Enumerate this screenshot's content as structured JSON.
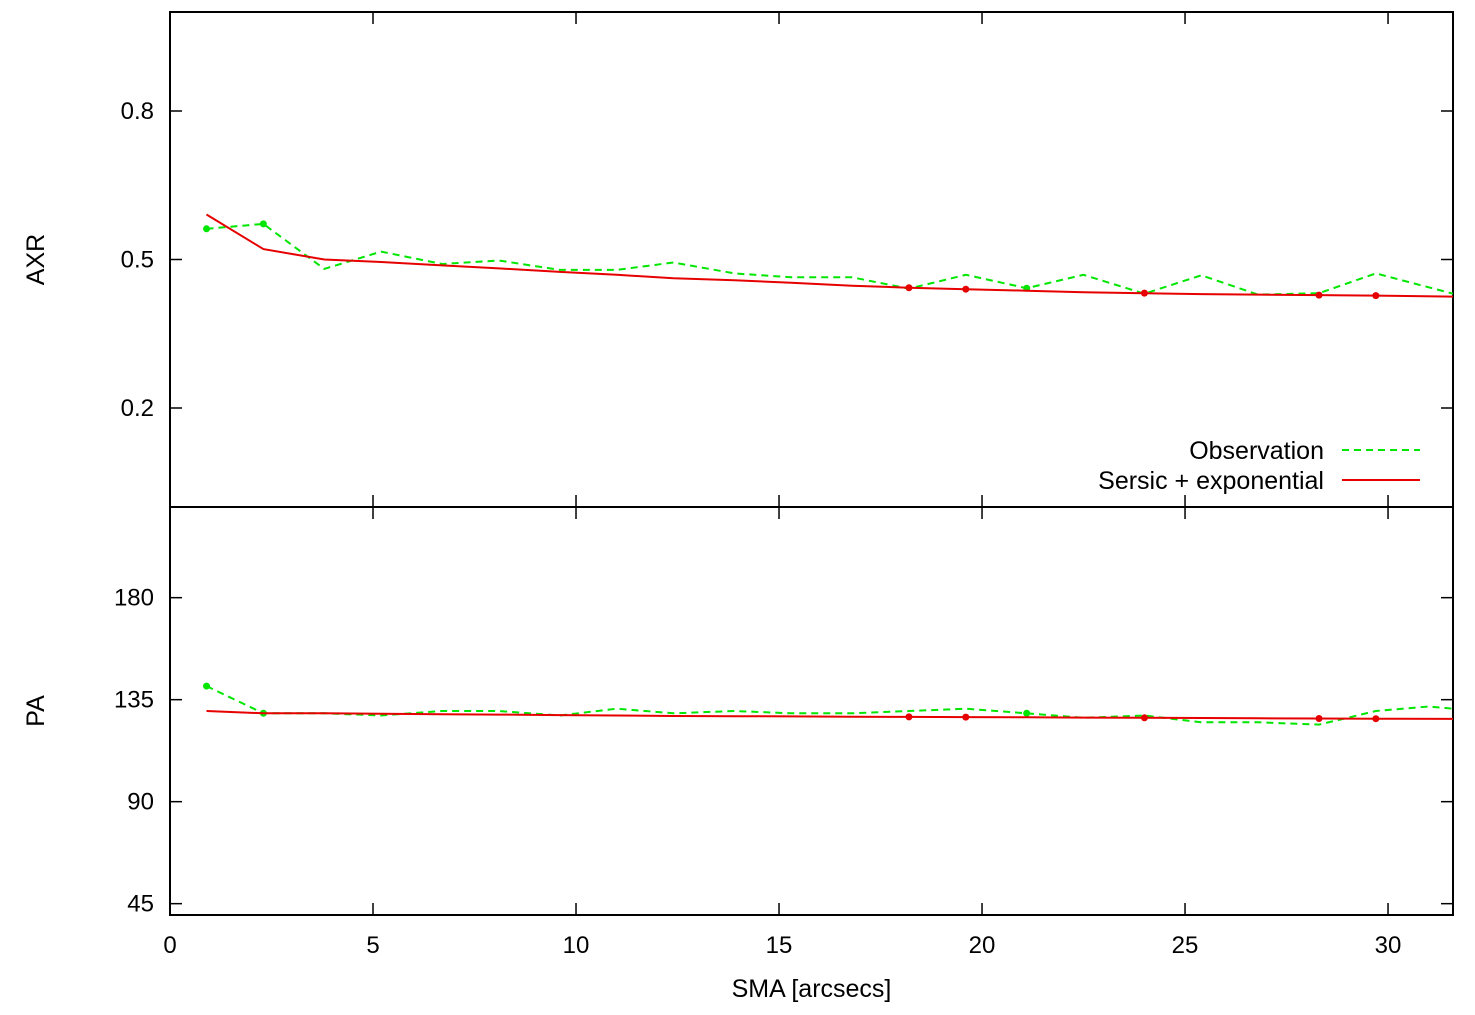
{
  "chart_data": [
    {
      "type": "line",
      "ylabel": "AXR",
      "xlabel": "",
      "xlim": [
        0,
        31.6
      ],
      "ylim": [
        0.0,
        1.0
      ],
      "xticks": [
        0,
        5,
        10,
        15,
        20,
        25,
        30
      ],
      "yticks": [
        0.2,
        0.5,
        0.8
      ],
      "ytick_labels": [
        "0.2",
        "0.5",
        "0.8"
      ],
      "legend_position": "bottom-right",
      "series": [
        {
          "name": "Observation",
          "color": "#00e600",
          "style": "dashed",
          "x": [
            0.9,
            2.3,
            3.8,
            5.2,
            6.7,
            8.1,
            9.6,
            11.0,
            12.4,
            13.9,
            15.3,
            16.8,
            18.2,
            19.6,
            21.1,
            22.5,
            24.0,
            25.4,
            26.8,
            28.3,
            29.7,
            31.6
          ],
          "y": [
            0.562,
            0.572,
            0.481,
            0.516,
            0.491,
            0.498,
            0.479,
            0.479,
            0.494,
            0.472,
            0.464,
            0.464,
            0.441,
            0.469,
            0.442,
            0.469,
            0.431,
            0.468,
            0.429,
            0.432,
            0.472,
            0.431
          ],
          "markers_x": [
            0.9,
            2.3,
            21.1
          ],
          "markers_y": [
            0.562,
            0.572,
            0.442
          ]
        },
        {
          "name": "Sersic + exponential",
          "color": "#e60000",
          "style": "solid",
          "x": [
            0.9,
            2.3,
            3.8,
            5.2,
            6.7,
            8.1,
            9.6,
            11.0,
            12.4,
            13.9,
            15.3,
            16.8,
            18.2,
            19.6,
            21.1,
            22.5,
            24.0,
            25.4,
            26.8,
            28.3,
            29.7,
            31.6
          ],
          "y": [
            0.591,
            0.521,
            0.5,
            0.495,
            0.488,
            0.482,
            0.475,
            0.469,
            0.462,
            0.458,
            0.453,
            0.447,
            0.443,
            0.44,
            0.437,
            0.434,
            0.432,
            0.43,
            0.429,
            0.428,
            0.427,
            0.425
          ],
          "markers_x": [
            18.2,
            19.6,
            24.0,
            28.3,
            29.7
          ],
          "markers_y": [
            0.443,
            0.44,
            0.432,
            0.428,
            0.427
          ]
        }
      ]
    },
    {
      "type": "line",
      "ylabel": "PA",
      "xlabel": "SMA [arcsecs]",
      "xlim": [
        0,
        31.6
      ],
      "ylim": [
        40,
        220
      ],
      "xticks": [
        0,
        5,
        10,
        15,
        20,
        25,
        30
      ],
      "xtick_labels": [
        "0",
        "5",
        "10",
        "15",
        "20",
        "25",
        "30"
      ],
      "yticks": [
        45,
        90,
        135,
        180
      ],
      "ytick_labels": [
        "45",
        "90",
        "135",
        "180"
      ],
      "series": [
        {
          "name": "Observation",
          "color": "#00e600",
          "style": "dashed",
          "x": [
            0.9,
            2.3,
            3.8,
            5.2,
            6.7,
            8.1,
            9.6,
            11.0,
            12.4,
            13.9,
            15.3,
            16.8,
            18.2,
            19.6,
            21.1,
            22.5,
            24.0,
            25.4,
            26.8,
            28.3,
            29.7,
            31.0,
            31.6
          ],
          "y": [
            141,
            129,
            129,
            128,
            130,
            130,
            128,
            131,
            129,
            130,
            129,
            129,
            130,
            131,
            129,
            127,
            128,
            125,
            125,
            124,
            130,
            132,
            131
          ],
          "markers_x": [
            0.9,
            2.3,
            21.1
          ],
          "markers_y": [
            141,
            129,
            129
          ]
        },
        {
          "name": "Sersic + exponential",
          "color": "#e60000",
          "style": "solid",
          "x": [
            0.9,
            2.3,
            3.8,
            5.2,
            6.7,
            8.1,
            9.6,
            11.0,
            12.4,
            13.9,
            15.3,
            16.8,
            18.2,
            19.6,
            21.1,
            22.5,
            24.0,
            25.4,
            26.8,
            28.3,
            29.7,
            31.6
          ],
          "y": [
            130,
            129,
            129,
            128.8,
            128.6,
            128.4,
            128.2,
            128,
            127.8,
            127.7,
            127.6,
            127.5,
            127.4,
            127.3,
            127.2,
            127.1,
            127,
            126.9,
            126.8,
            126.7,
            126.6,
            126.5
          ],
          "markers_x": [
            18.2,
            19.6,
            24.0,
            28.3,
            29.7
          ],
          "markers_y": [
            127.4,
            127.3,
            127,
            126.7,
            126.6
          ]
        }
      ]
    }
  ]
}
